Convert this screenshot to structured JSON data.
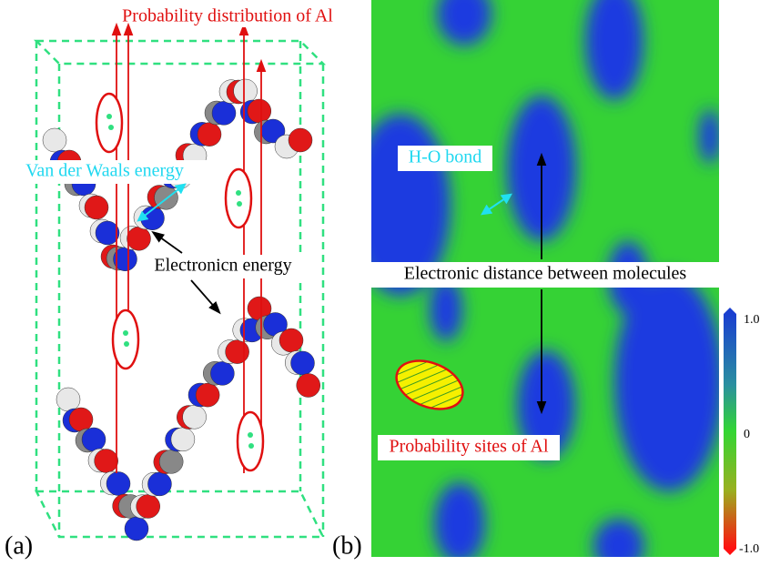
{
  "panel_a": {
    "label": "(a)",
    "title": "Probability distribution of Al",
    "vdw_label": "Van der Waals energy",
    "energy_label": "Electronicn energy"
  },
  "panel_b": {
    "label": "(b)",
    "bond_label": "H-O bond",
    "distance_label": "Electronic distance between molecules",
    "sites_label": "Probability sites of Al",
    "colorbar": {
      "ticks": [
        "1.0",
        "0",
        "-1.0"
      ]
    }
  }
}
